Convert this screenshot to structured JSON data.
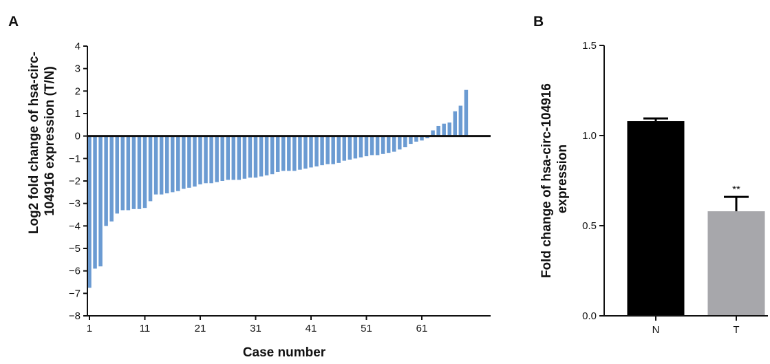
{
  "panels": {
    "a": "A",
    "b": "B"
  },
  "chart_data": [
    {
      "type": "bar",
      "panel": "A",
      "xlabel": "Case number",
      "ylabel": [
        "Log2 fold change of hsa-circ-",
        "104916 expression (T/N)"
      ],
      "ylim": [
        -8,
        4
      ],
      "yticks": [
        -8,
        -7,
        -6,
        -5,
        -4,
        -3,
        -2,
        -1,
        0,
        1,
        2,
        3,
        4
      ],
      "xticks": [
        1,
        11,
        21,
        31,
        41,
        51,
        61
      ],
      "grid": false,
      "color": "#6b9bd2",
      "values": [
        -6.75,
        -5.9,
        -5.8,
        -4.0,
        -3.8,
        -3.45,
        -3.3,
        -3.3,
        -3.25,
        -3.25,
        -3.2,
        -2.9,
        -2.6,
        -2.6,
        -2.55,
        -2.5,
        -2.45,
        -2.35,
        -2.3,
        -2.25,
        -2.15,
        -2.1,
        -2.1,
        -2.05,
        -2.0,
        -1.95,
        -1.95,
        -1.95,
        -1.9,
        -1.85,
        -1.85,
        -1.8,
        -1.75,
        -1.7,
        -1.6,
        -1.55,
        -1.55,
        -1.55,
        -1.5,
        -1.45,
        -1.4,
        -1.35,
        -1.3,
        -1.25,
        -1.25,
        -1.2,
        -1.1,
        -1.05,
        -1.0,
        -0.95,
        -0.9,
        -0.85,
        -0.85,
        -0.8,
        -0.75,
        -0.7,
        -0.6,
        -0.5,
        -0.35,
        -0.25,
        -0.2,
        -0.1,
        0.25,
        0.45,
        0.55,
        0.6,
        1.1,
        1.35,
        2.05
      ]
    },
    {
      "type": "bar",
      "panel": "B",
      "categories": [
        "N",
        "T"
      ],
      "values": [
        1.08,
        0.58
      ],
      "errors": [
        0.015,
        0.08
      ],
      "colors": [
        "#000000",
        "#a7a7ab"
      ],
      "annotations": [
        "",
        "**"
      ],
      "ylabel": [
        "Fold change of hsa-circ-104916",
        "expression"
      ],
      "xlabel": "",
      "ylim": [
        0,
        1.5
      ],
      "yticks": [
        "0.0",
        "0.5",
        "1.0",
        "1.5"
      ],
      "grid": false
    }
  ]
}
